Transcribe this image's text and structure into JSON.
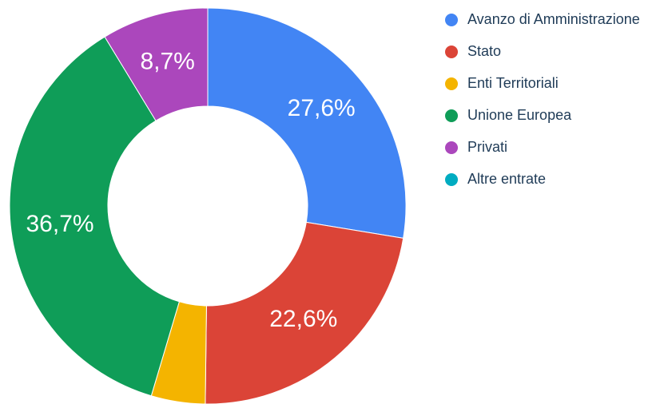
{
  "chart_data": {
    "type": "donut",
    "categories": [
      "Avanzo di Amministrazione",
      "Stato",
      "Enti Territoriali",
      "Unione Europea",
      "Privati",
      "Altre entrate"
    ],
    "values": [
      27.6,
      22.6,
      4.4,
      36.7,
      8.7,
      0
    ],
    "value_labels": [
      "27,6%",
      "22,6%",
      null,
      "36,7%",
      "8,7%",
      null
    ],
    "colors": [
      "#4285f4",
      "#db4437",
      "#f4b400",
      "#0f9d58",
      "#ab47bc",
      "#00acc1"
    ],
    "legend": "right"
  }
}
